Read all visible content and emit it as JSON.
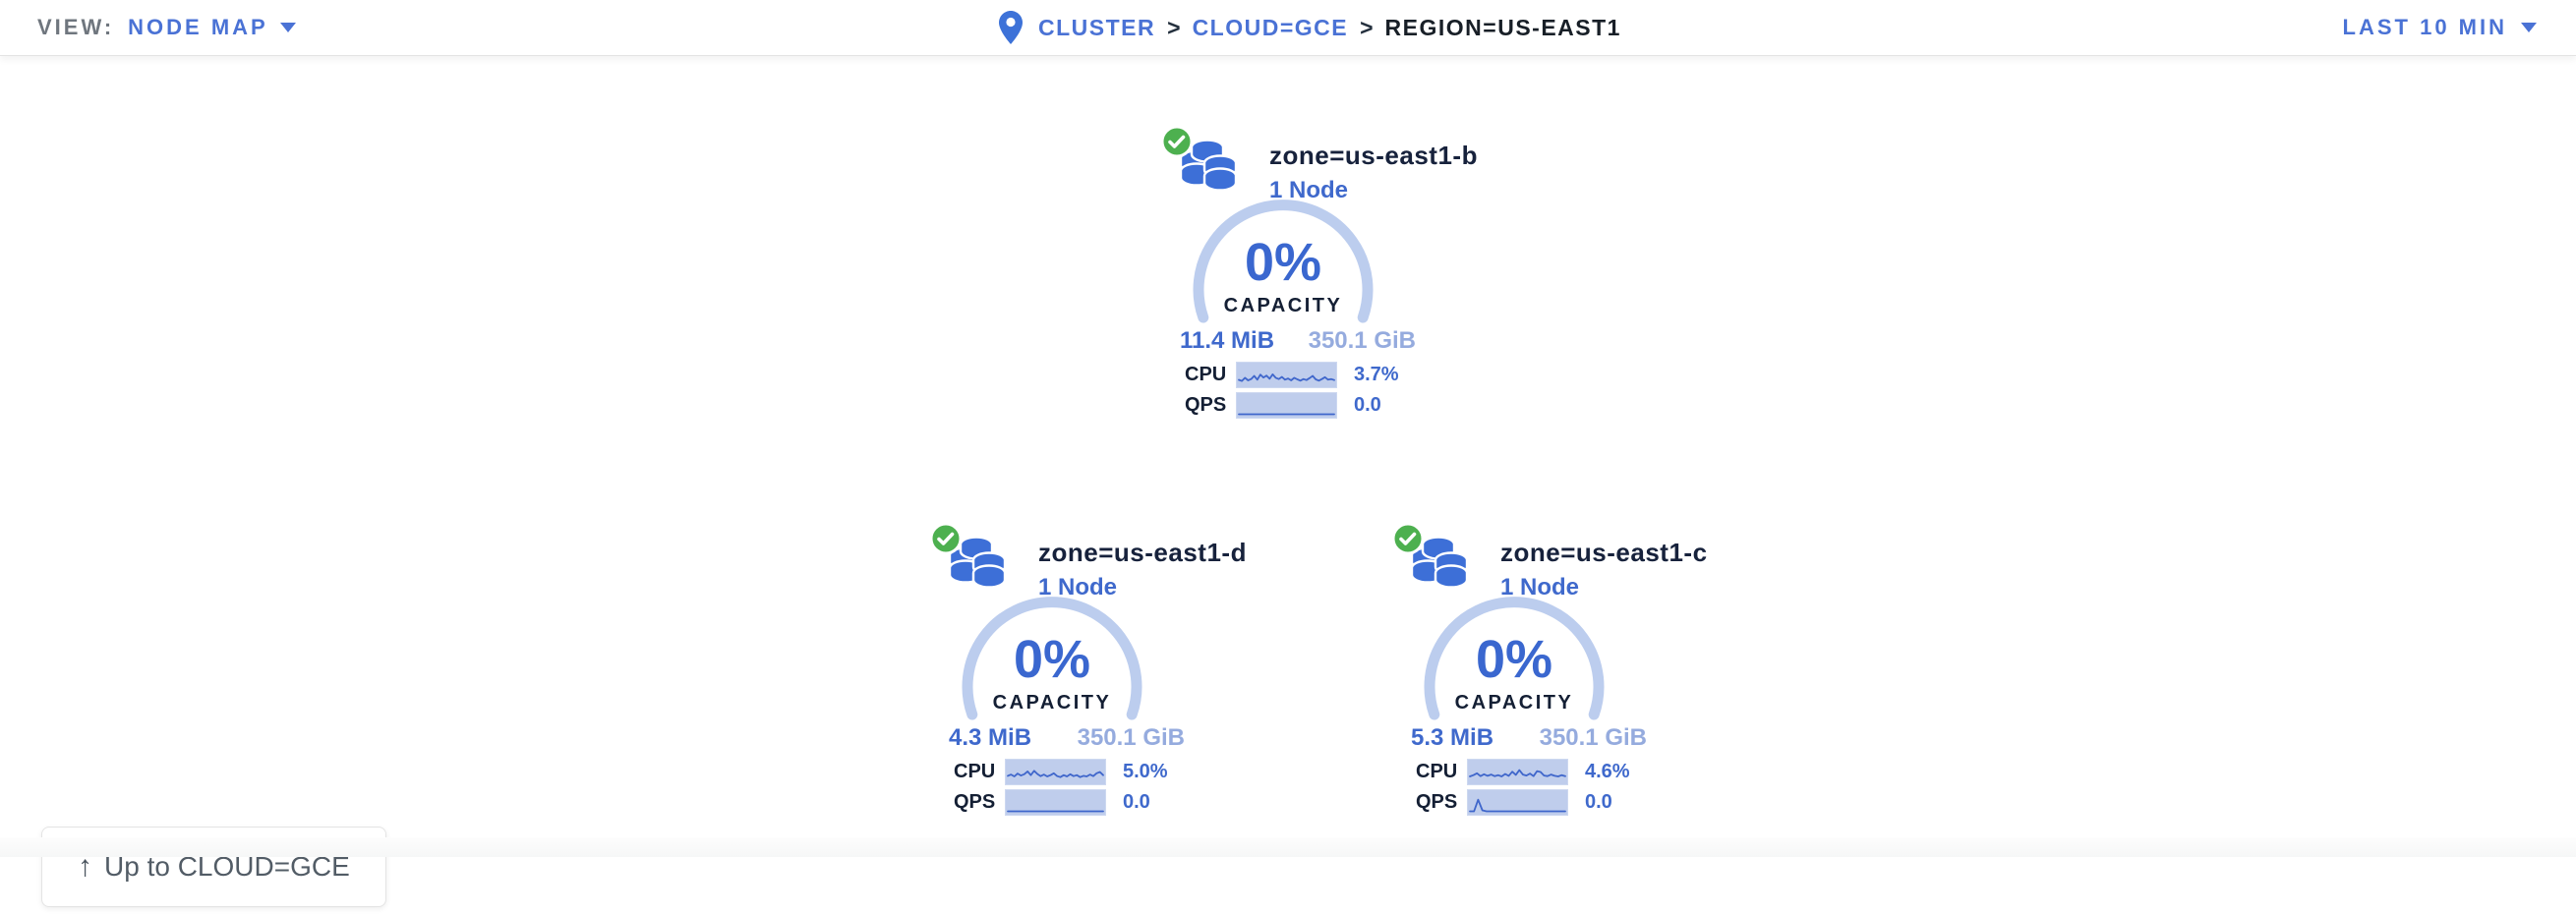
{
  "colors": {
    "link_blue": "#4a72d5",
    "value_blue": "#3f69cc",
    "arc_blue": "#bccdee",
    "spark_bg": "#bfcdec",
    "spark_line": "#3f66cb",
    "healthy_green": "#4db04f",
    "dark_navy": "#141f34"
  },
  "topbar": {
    "view_label": "VIEW:",
    "view_value": "NODE MAP",
    "separator": ">",
    "breadcrumb": {
      "root": "CLUSTER",
      "parent": "CLOUD=GCE",
      "current": "REGION=US-EAST1"
    },
    "time_range": "LAST 10 MIN"
  },
  "zones": [
    {
      "name": "zone=us-east1-b",
      "nodes_label": "1 Node",
      "status": "healthy",
      "capacity_pct": "0%",
      "capacity_label": "CAPACITY",
      "used": "11.4 MiB",
      "total": "350.1 GiB",
      "cpu_label": "CPU",
      "cpu_value": "3.7%",
      "cpu_spark": [
        0.25,
        0.18,
        0.38,
        0.22,
        0.3,
        0.5,
        0.26,
        0.58,
        0.4,
        0.52,
        0.32,
        0.6,
        0.38,
        0.3,
        0.44,
        0.26,
        0.34,
        0.22,
        0.38,
        0.28,
        0.2,
        0.3,
        0.24,
        0.36,
        0.5,
        0.28,
        0.2,
        0.3,
        0.42,
        0.26,
        0.3,
        0.24
      ],
      "qps_label": "QPS",
      "qps_value": "0.0",
      "qps_spark": [
        0,
        0,
        0,
        0,
        0,
        0,
        0,
        0,
        0,
        0,
        0,
        0,
        0,
        0,
        0,
        0,
        0,
        0,
        0,
        0,
        0,
        0,
        0,
        0
      ]
    },
    {
      "name": "zone=us-east1-d",
      "nodes_label": "1 Node",
      "status": "healthy",
      "capacity_pct": "0%",
      "capacity_label": "CAPACITY",
      "used": "4.3 MiB",
      "total": "350.1 GiB",
      "cpu_label": "CPU",
      "cpu_value": "5.0%",
      "cpu_spark": [
        0.32,
        0.4,
        0.28,
        0.46,
        0.34,
        0.42,
        0.6,
        0.36,
        0.64,
        0.44,
        0.3,
        0.4,
        0.28,
        0.36,
        0.48,
        0.3,
        0.24,
        0.36,
        0.28,
        0.42,
        0.3,
        0.36,
        0.24,
        0.32,
        0.28,
        0.4,
        0.3,
        0.48,
        0.56,
        0.36
      ],
      "qps_label": "QPS",
      "qps_value": "0.0",
      "qps_spark": [
        0,
        0,
        0,
        0,
        0,
        0,
        0,
        0,
        0,
        0,
        0,
        0,
        0,
        0,
        0,
        0,
        0,
        0,
        0,
        0,
        0,
        0,
        0,
        0
      ]
    },
    {
      "name": "zone=us-east1-c",
      "nodes_label": "1 Node",
      "status": "healthy",
      "capacity_pct": "0%",
      "capacity_label": "CAPACITY",
      "used": "5.3 MiB",
      "total": "350.1 GiB",
      "cpu_label": "CPU",
      "cpu_value": "4.6%",
      "cpu_spark": [
        0.28,
        0.36,
        0.48,
        0.3,
        0.42,
        0.32,
        0.4,
        0.3,
        0.36,
        0.28,
        0.44,
        0.32,
        0.58,
        0.38,
        0.68,
        0.4,
        0.34,
        0.46,
        0.3,
        0.62,
        0.56,
        0.34,
        0.3,
        0.4,
        0.32,
        0.28,
        0.36,
        0.3
      ],
      "qps_label": "QPS",
      "qps_value": "0.0",
      "qps_spark": [
        0,
        0,
        0.74,
        0.06,
        0,
        0,
        0,
        0,
        0,
        0,
        0,
        0,
        0,
        0,
        0,
        0,
        0,
        0,
        0,
        0,
        0,
        0,
        0,
        0
      ]
    }
  ],
  "up_button": {
    "arrow": "↑",
    "label": "Up to CLOUD=GCE"
  }
}
